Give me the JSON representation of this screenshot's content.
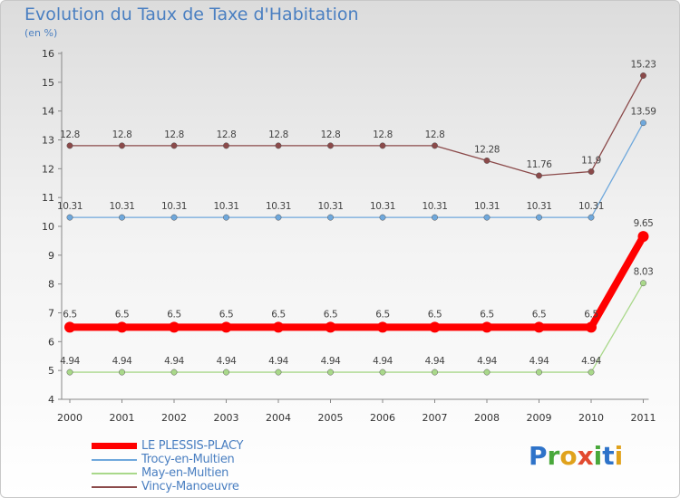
{
  "header": {
    "title": "Evolution du Taux de Taxe d'Habitation",
    "subtitle": "(en %)"
  },
  "logo": {
    "text": "Proxiti",
    "letters": [
      "P",
      "r",
      "o",
      "x",
      "i",
      "t",
      "i"
    ]
  },
  "chart_data": {
    "type": "line",
    "title": "Evolution du Taux de Taxe d'Habitation",
    "ylabel": "(en %)",
    "xlabel": "",
    "x": [
      "2000",
      "2001",
      "2002",
      "2003",
      "2004",
      "2005",
      "2006",
      "2007",
      "2008",
      "2009",
      "2010",
      "2011"
    ],
    "ylim": [
      4,
      16
    ],
    "yticks": [
      "4",
      "5",
      "6",
      "7",
      "8",
      "9",
      "10",
      "11",
      "12",
      "13",
      "14",
      "15",
      "16"
    ],
    "grid": false,
    "legend_position": "bottom-left",
    "series": [
      {
        "name": "LE PLESSIS-PLACY",
        "color": "#ff0000",
        "values": [
          6.5,
          6.5,
          6.5,
          6.5,
          6.5,
          6.5,
          6.5,
          6.5,
          6.5,
          6.5,
          6.5,
          9.65
        ],
        "labels": [
          "6.5",
          "6.5",
          "6.5",
          "6.5",
          "6.5",
          "6.5",
          "6.5",
          "6.5",
          "6.5",
          "6.5",
          "6.5",
          "9.65"
        ]
      },
      {
        "name": "Trocy-en-Multien",
        "color": "#6fa8dc",
        "values": [
          10.31,
          10.31,
          10.31,
          10.31,
          10.31,
          10.31,
          10.31,
          10.31,
          10.31,
          10.31,
          10.31,
          13.59
        ],
        "labels": [
          "10.31",
          "10.31",
          "10.31",
          "10.31",
          "10.31",
          "10.31",
          "10.31",
          "10.31",
          "10.31",
          "10.31",
          "10.31",
          "13.59"
        ]
      },
      {
        "name": "May-en-Multien",
        "color": "#a9d88a",
        "values": [
          4.94,
          4.94,
          4.94,
          4.94,
          4.94,
          4.94,
          4.94,
          4.94,
          4.94,
          4.94,
          4.94,
          8.03
        ],
        "labels": [
          "4.94",
          "4.94",
          "4.94",
          "4.94",
          "4.94",
          "4.94",
          "4.94",
          "4.94",
          "4.94",
          "4.94",
          "4.94",
          "8.03"
        ]
      },
      {
        "name": "Vincy-Manoeuvre",
        "color": "#8b4a4a",
        "values": [
          12.8,
          12.8,
          12.8,
          12.8,
          12.8,
          12.8,
          12.8,
          12.8,
          12.28,
          11.76,
          11.9,
          15.23
        ],
        "labels": [
          "12.8",
          "12.8",
          "12.8",
          "12.8",
          "12.8",
          "12.8",
          "12.8",
          "12.8",
          "12.28",
          "11.76",
          "11.9",
          "15.23"
        ]
      }
    ]
  }
}
